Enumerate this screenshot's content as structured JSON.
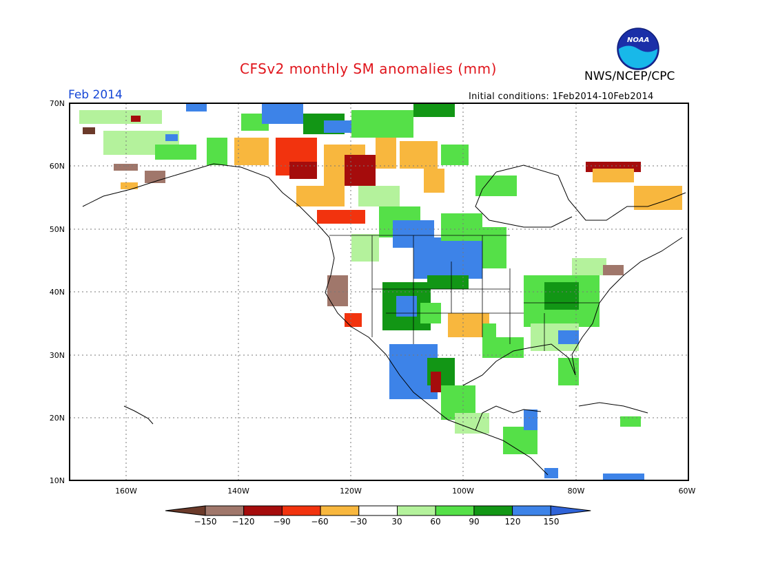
{
  "header": {
    "title": "CFSv2 monthly SM anomalies (mm)",
    "agency": "NWS/NCEP/CPC",
    "month": "Feb 2014",
    "initial_conditions": "Initial conditions: 1Feb2014-10Feb2014",
    "logo_text": "NOAA"
  },
  "map": {
    "lat_labels": [
      "70N",
      "60N",
      "50N",
      "40N",
      "30N",
      "20N",
      "10N"
    ],
    "lon_labels": [
      "160W",
      "140W",
      "120W",
      "100W",
      "80W",
      "60W"
    ],
    "lat_range": [
      10,
      70
    ],
    "lon_range": [
      -170,
      -60
    ],
    "grid": "dotted"
  },
  "legend": {
    "tick_labels": [
      "-150",
      "-120",
      "-90",
      "-60",
      "-30",
      "30",
      "60",
      "90",
      "120",
      "150"
    ],
    "colors": [
      "#6b3a2a",
      "#a0776b",
      "#a50c0c",
      "#f2330e",
      "#f8b73e",
      "#ffffff",
      "#b4f29c",
      "#55e048",
      "#129615",
      "#3d83e8",
      "#2f63d8"
    ]
  }
}
